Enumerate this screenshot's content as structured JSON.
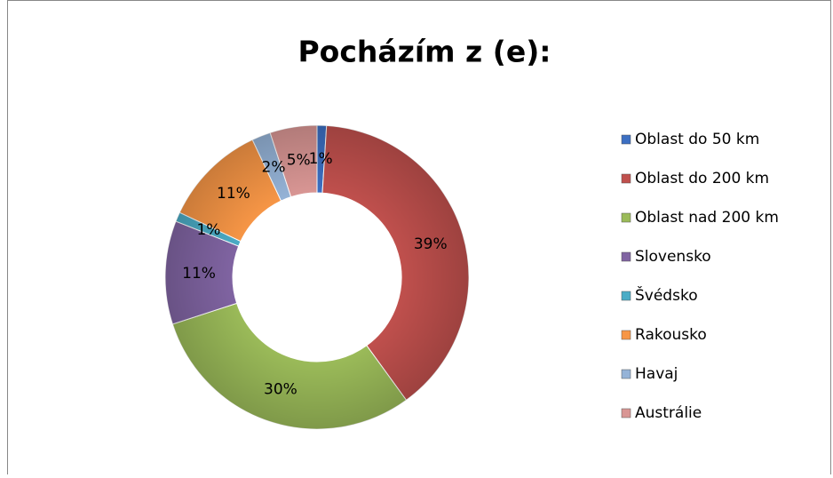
{
  "chart_data": {
    "type": "doughnut",
    "title": "Pocházím z (e):",
    "categories": [
      "Oblast do 50 km",
      "Oblast do 200 km",
      "Oblast nad 200 km",
      "Slovensko",
      "Švédsko",
      "Rakousko",
      "Havaj",
      "Austrálie"
    ],
    "values": [
      1,
      39,
      30,
      11,
      1,
      11,
      2,
      5
    ],
    "value_labels": [
      "1%",
      "39%",
      "30%",
      "11%",
      "1%",
      "11%",
      "2%",
      "5%"
    ],
    "colors": [
      "#3c6fc2",
      "#c0504d",
      "#9bbb59",
      "#8064a2",
      "#4bacc6",
      "#f79646",
      "#95b3d7",
      "#d99694"
    ],
    "legend": "right"
  }
}
